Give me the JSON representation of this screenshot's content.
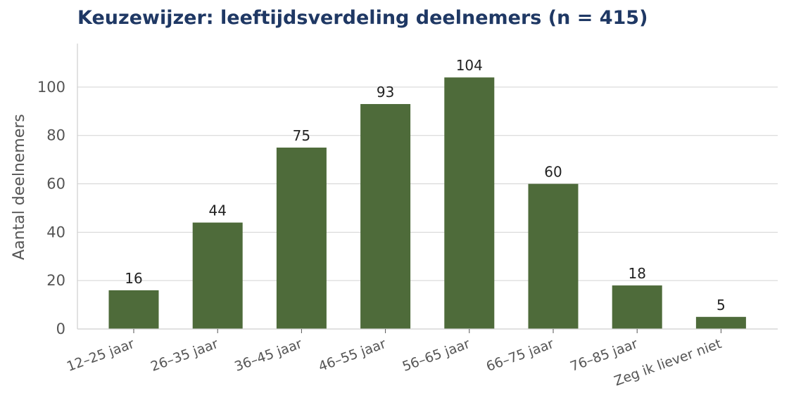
{
  "chart_data": {
    "type": "bar",
    "title": "Keuzewijzer: leeftijdsverdeling deelnemers (n = 415)",
    "xlabel": "",
    "ylabel": "Aantal deelnemers",
    "categories": [
      "12–25 jaar",
      "26–35 jaar",
      "36–45 jaar",
      "46–55 jaar",
      "56–65 jaar",
      "66–75 jaar",
      "76–85 jaar",
      "Zeg ik liever niet"
    ],
    "values": [
      16,
      44,
      75,
      93,
      104,
      60,
      18,
      5
    ],
    "ylim": [
      0,
      118
    ],
    "yticks": [
      0,
      20,
      40,
      60,
      80,
      100
    ],
    "grid": "horizontal",
    "bar_color": "#4e6b3a",
    "title_color": "#1f3864",
    "data_labels": true
  }
}
